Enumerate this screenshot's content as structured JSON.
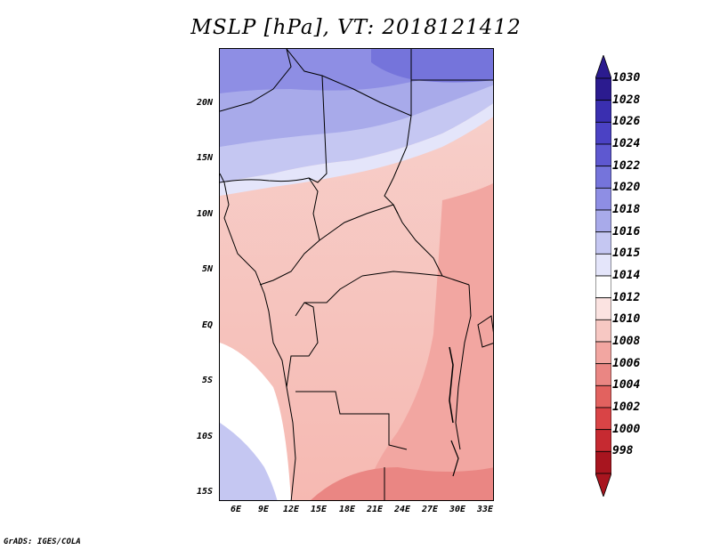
{
  "title": "MSLP [hPa], VT: 2018121412",
  "credit": "GrADS: IGES/COLA",
  "map": {
    "lat_labels": [
      "20N",
      "15N",
      "10N",
      "5N",
      "EQ",
      "5S",
      "10S",
      "15S"
    ],
    "lon_labels": [
      "6E",
      "9E",
      "12E",
      "15E",
      "18E",
      "21E",
      "24E",
      "27E",
      "30E",
      "33E"
    ]
  },
  "colorbar": {
    "levels": [
      "1030",
      "1028",
      "1026",
      "1024",
      "1022",
      "1020",
      "1018",
      "1016",
      "1015",
      "1014",
      "1012",
      "1010",
      "1008",
      "1006",
      "1004",
      "1002",
      "1000",
      "998"
    ],
    "colors": [
      "#2b1b8f",
      "#3a2fb0",
      "#4b42c4",
      "#5e58d0",
      "#7574db",
      "#8e8ee4",
      "#a8aaea",
      "#c5c7f2",
      "#e4e5fa",
      "#ffffff",
      "#fbe3e1",
      "#f7c8c3",
      "#f2a6a1",
      "#ea8683",
      "#e2625f",
      "#d94446",
      "#c62a31",
      "#a8151f"
    ]
  }
}
